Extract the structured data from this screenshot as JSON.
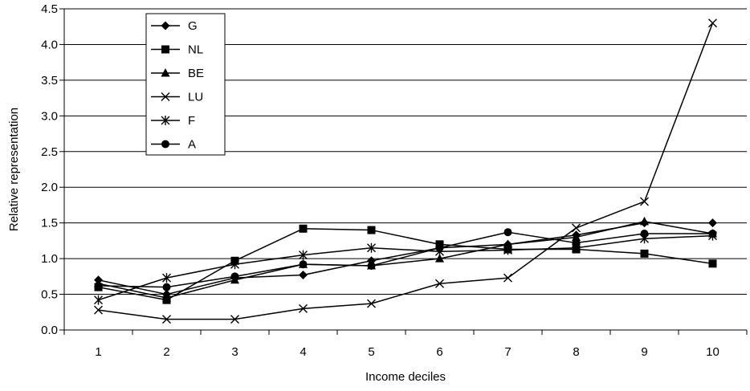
{
  "chart_data": {
    "type": "line",
    "title": "",
    "xlabel": "Income deciles",
    "ylabel": "Relative representation",
    "x": [
      1,
      2,
      3,
      4,
      5,
      6,
      7,
      8,
      9,
      10
    ],
    "ylim": [
      0,
      4.5
    ],
    "yticks": [
      "0.0",
      "0.5",
      "1.0",
      "1.5",
      "2.0",
      "2.5",
      "3.0",
      "3.5",
      "4.0",
      "4.5"
    ],
    "xticks": [
      "1",
      "2",
      "3",
      "4",
      "5",
      "6",
      "7",
      "8",
      "9",
      "10"
    ],
    "grid": "horizontal",
    "legend_position": "top-left",
    "series": [
      {
        "name": "G",
        "marker": "diamond",
        "values": [
          0.7,
          0.5,
          0.73,
          0.77,
          0.97,
          1.15,
          1.2,
          1.33,
          1.5,
          1.5
        ]
      },
      {
        "name": "NL",
        "marker": "square",
        "values": [
          0.6,
          0.42,
          0.97,
          1.42,
          1.4,
          1.2,
          1.13,
          1.13,
          1.07,
          0.93
        ]
      },
      {
        "name": "BE",
        "marker": "triangle",
        "values": [
          0.65,
          0.45,
          0.7,
          0.92,
          0.9,
          1.0,
          1.2,
          1.3,
          1.52,
          1.35
        ]
      },
      {
        "name": "LU",
        "marker": "x",
        "values": [
          0.28,
          0.15,
          0.15,
          0.3,
          0.37,
          0.65,
          0.73,
          1.43,
          1.8,
          4.3
        ]
      },
      {
        "name": "F",
        "marker": "star",
        "values": [
          0.42,
          0.73,
          0.92,
          1.05,
          1.15,
          1.1,
          1.12,
          1.15,
          1.28,
          1.32
        ]
      },
      {
        "name": "A",
        "marker": "circle",
        "values": [
          0.62,
          0.6,
          0.75,
          0.92,
          0.9,
          1.15,
          1.37,
          1.22,
          1.35,
          1.35
        ]
      }
    ],
    "colors": {
      "line": "#000000",
      "grid": "#000000",
      "background": "#ffffff"
    }
  }
}
